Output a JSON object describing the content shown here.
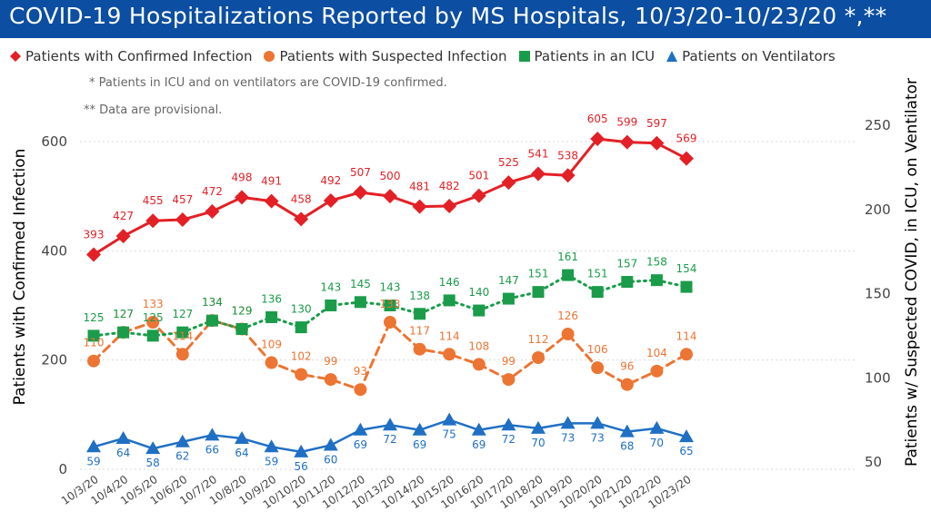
{
  "header": {
    "title": "COVID-19 Hospitalizations Reported by MS Hospitals, 10/3/20-10/23/20 *,**"
  },
  "notes": [
    "* Patients in ICU and on ventilators are COVID-19 confirmed.",
    "** Data are provisional."
  ],
  "colors": {
    "title_bg": "#0b4ea2",
    "confirmed": "#e32026",
    "suspected": "#ec7533",
    "icu": "#1a9c4a",
    "ventilators": "#1f6fc4",
    "gridline": "#d9d9d9"
  },
  "chart_data": {
    "type": "line",
    "title": "COVID-19 Hospitalizations Reported by MS Hospitals, 10/3/20-10/23/20 *,**",
    "categories": [
      "10/3/20",
      "10/4/20",
      "10/5/20",
      "10/6/20",
      "10/7/20",
      "10/8/20",
      "10/9/20",
      "10/10/20",
      "10/11/20",
      "10/12/20",
      "10/13/20",
      "10/14/20",
      "10/15/20",
      "10/16/20",
      "10/17/20",
      "10/18/20",
      "10/19/20",
      "10/20/20",
      "10/21/20",
      "10/22/20",
      "10/23/20"
    ],
    "ylabel": "Patients with Confirmed Infection",
    "y2label": "Patients w/ Suspected COVID, in ICU, on Ventilator",
    "ylim": [
      0,
      650
    ],
    "y2lim": [
      50,
      260
    ],
    "yticks": [
      0,
      200,
      400,
      600
    ],
    "y2ticks": [
      50,
      100,
      150,
      200,
      250
    ],
    "grid": true,
    "legend_position": "top",
    "series": [
      {
        "name": "Patients with Confirmed Infection",
        "axis": "left",
        "marker": "diamond",
        "line": "solid",
        "color": "#e32026",
        "values": [
          393,
          427,
          455,
          457,
          472,
          498,
          491,
          458,
          492,
          507,
          500,
          481,
          482,
          501,
          525,
          541,
          538,
          605,
          599,
          597,
          569
        ]
      },
      {
        "name": "Patients with Suspected Infection",
        "axis": "right",
        "marker": "circle",
        "line": "dashed",
        "color": "#ec7533",
        "values": [
          110,
          127,
          133,
          114,
          134,
          129,
          109,
          102,
          99,
          93,
          133,
          117,
          114,
          108,
          99,
          112,
          126,
          106,
          96,
          104,
          114
        ]
      },
      {
        "name": "Patients in an ICU",
        "axis": "right",
        "marker": "square",
        "line": "dotted",
        "color": "#1a9c4a",
        "values": [
          125,
          127,
          125,
          127,
          134,
          129,
          136,
          130,
          143,
          145,
          143,
          138,
          146,
          140,
          147,
          151,
          161,
          151,
          157,
          158,
          154
        ]
      },
      {
        "name": "Patients on Ventilators",
        "axis": "right",
        "marker": "triangle",
        "line": "solid",
        "color": "#1f6fc4",
        "values": [
          59,
          64,
          58,
          62,
          66,
          64,
          59,
          56,
          60,
          69,
          72,
          69,
          75,
          69,
          72,
          70,
          73,
          73,
          68,
          70,
          65
        ]
      }
    ]
  }
}
